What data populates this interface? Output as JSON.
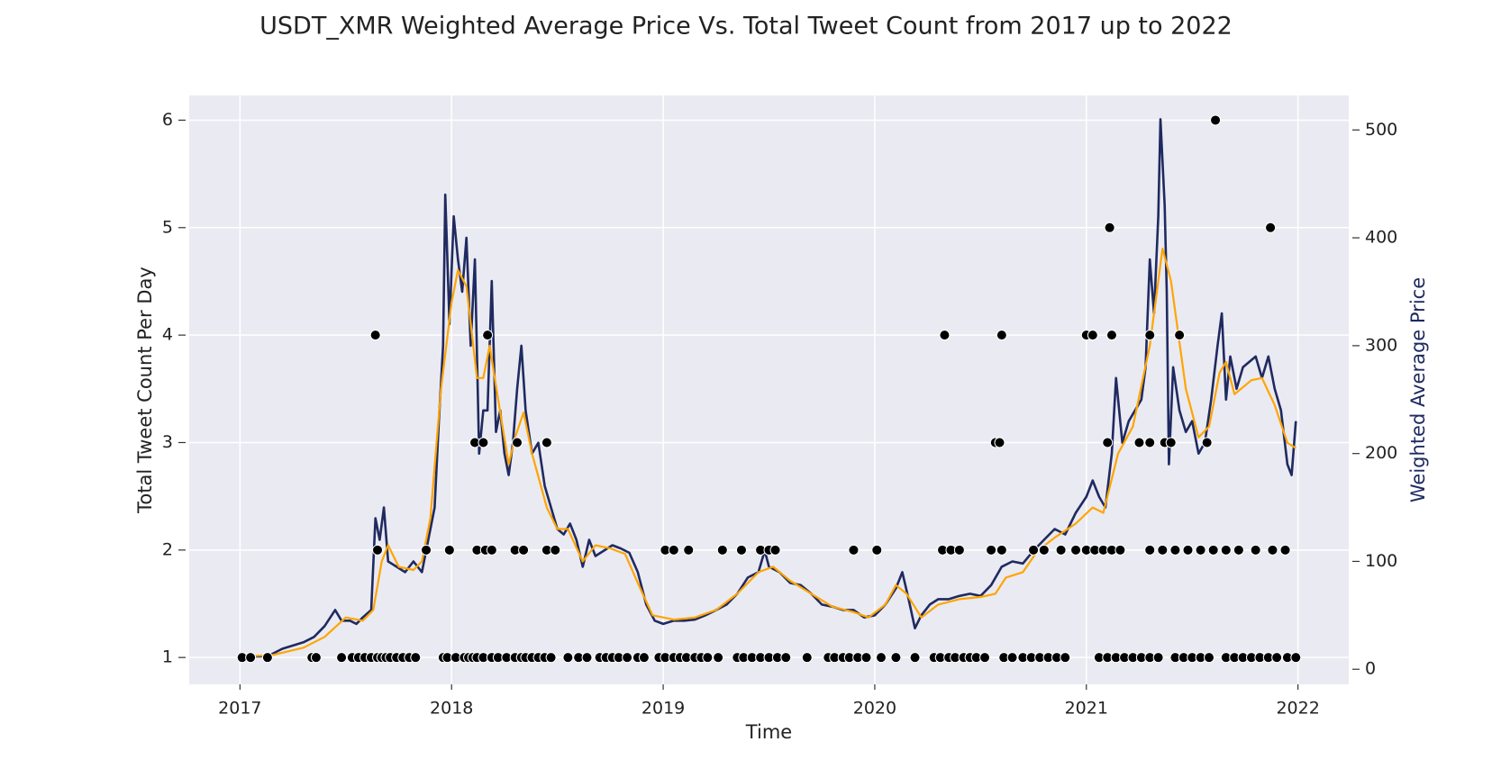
{
  "chart_data": {
    "type": "combo",
    "title": "USDT_XMR Weighted Average Price Vs. Total Tweet Count from 2017 up to 2022",
    "xlabel": "Time",
    "ylabel": "Total Tweet Count Per Day",
    "y2label": "Weighted Average Price",
    "y2label_color": "#1f2a60",
    "xlim": [
      2016.76,
      2022.24
    ],
    "xticks": [
      2017,
      2018,
      2019,
      2020,
      2021,
      2022
    ],
    "ylim": [
      0.75,
      6.23
    ],
    "yticks": [
      1,
      2,
      3,
      4,
      5,
      6
    ],
    "y2lim": [
      -14,
      532
    ],
    "y2ticks": [
      0,
      100,
      200,
      300,
      400,
      500
    ],
    "grid": true,
    "series": [
      {
        "type": "line",
        "axis": "y2",
        "color": "#1f2a60",
        "width": 2.6,
        "x": [
          2017.0,
          2017.05,
          2017.1,
          2017.15,
          2017.2,
          2017.25,
          2017.3,
          2017.35,
          2017.4,
          2017.45,
          2017.48,
          2017.52,
          2017.55,
          2017.58,
          2017.62,
          2017.64,
          2017.66,
          2017.68,
          2017.7,
          2017.74,
          2017.78,
          2017.82,
          2017.86,
          2017.88,
          2017.92,
          2017.94,
          2017.96,
          2017.97,
          2017.99,
          2018.01,
          2018.03,
          2018.05,
          2018.07,
          2018.09,
          2018.11,
          2018.13,
          2018.15,
          2018.17,
          2018.19,
          2018.21,
          2018.23,
          2018.25,
          2018.27,
          2018.29,
          2018.31,
          2018.33,
          2018.35,
          2018.38,
          2018.41,
          2018.44,
          2018.47,
          2018.5,
          2018.53,
          2018.56,
          2018.59,
          2018.62,
          2018.65,
          2018.68,
          2018.72,
          2018.76,
          2018.8,
          2018.84,
          2018.88,
          2018.92,
          2018.96,
          2019.0,
          2019.05,
          2019.1,
          2019.15,
          2019.2,
          2019.25,
          2019.3,
          2019.35,
          2019.4,
          2019.45,
          2019.48,
          2019.5,
          2019.55,
          2019.6,
          2019.65,
          2019.7,
          2019.75,
          2019.8,
          2019.85,
          2019.9,
          2019.95,
          2020.0,
          2020.05,
          2020.1,
          2020.13,
          2020.16,
          2020.19,
          2020.22,
          2020.26,
          2020.3,
          2020.35,
          2020.4,
          2020.45,
          2020.5,
          2020.55,
          2020.6,
          2020.65,
          2020.7,
          2020.75,
          2020.8,
          2020.85,
          2020.9,
          2020.95,
          2021.0,
          2021.03,
          2021.06,
          2021.09,
          2021.12,
          2021.14,
          2021.17,
          2021.2,
          2021.23,
          2021.26,
          2021.28,
          2021.3,
          2021.32,
          2021.34,
          2021.35,
          2021.37,
          2021.38,
          2021.39,
          2021.41,
          2021.44,
          2021.47,
          2021.5,
          2021.53,
          2021.56,
          2021.59,
          2021.62,
          2021.64,
          2021.66,
          2021.68,
          2021.71,
          2021.74,
          2021.77,
          2021.8,
          2021.83,
          2021.86,
          2021.89,
          2021.92,
          2021.95,
          2021.97,
          2021.99
        ],
        "values": [
          13,
          12,
          12,
          14,
          19,
          22,
          25,
          30,
          40,
          55,
          45,
          45,
          42,
          48,
          55,
          140,
          120,
          150,
          100,
          95,
          90,
          100,
          90,
          110,
          150,
          230,
          300,
          440,
          320,
          420,
          380,
          350,
          400,
          300,
          380,
          200,
          240,
          240,
          360,
          220,
          240,
          200,
          180,
          210,
          260,
          300,
          240,
          200,
          210,
          170,
          150,
          130,
          125,
          135,
          120,
          95,
          120,
          105,
          110,
          115,
          112,
          108,
          90,
          60,
          45,
          42,
          45,
          45,
          46,
          50,
          55,
          60,
          70,
          85,
          90,
          110,
          95,
          90,
          80,
          78,
          70,
          60,
          58,
          55,
          55,
          48,
          50,
          60,
          75,
          90,
          65,
          38,
          50,
          60,
          65,
          65,
          68,
          70,
          68,
          78,
          95,
          100,
          98,
          110,
          120,
          130,
          125,
          145,
          160,
          175,
          160,
          150,
          200,
          270,
          210,
          230,
          240,
          250,
          280,
          380,
          330,
          420,
          510,
          430,
          350,
          190,
          280,
          240,
          220,
          230,
          200,
          210,
          250,
          300,
          330,
          250,
          290,
          260,
          280,
          285,
          290,
          270,
          290,
          260,
          240,
          190,
          180,
          230
        ]
      },
      {
        "type": "line",
        "axis": "y2",
        "color": "#ffa500",
        "width": 2.2,
        "x": [
          2017.0,
          2017.15,
          2017.3,
          2017.4,
          2017.5,
          2017.58,
          2017.63,
          2017.67,
          2017.7,
          2017.75,
          2017.82,
          2017.86,
          2017.9,
          2017.95,
          2018.0,
          2018.03,
          2018.07,
          2018.12,
          2018.15,
          2018.18,
          2018.22,
          2018.27,
          2018.3,
          2018.34,
          2018.38,
          2018.45,
          2018.5,
          2018.55,
          2018.62,
          2018.68,
          2018.75,
          2018.82,
          2018.88,
          2018.95,
          2019.05,
          2019.15,
          2019.25,
          2019.35,
          2019.45,
          2019.52,
          2019.6,
          2019.7,
          2019.8,
          2019.9,
          2019.97,
          2020.05,
          2020.1,
          2020.15,
          2020.22,
          2020.3,
          2020.4,
          2020.5,
          2020.57,
          2020.62,
          2020.7,
          2020.77,
          2020.85,
          2020.95,
          2021.03,
          2021.08,
          2021.15,
          2021.22,
          2021.3,
          2021.36,
          2021.4,
          2021.47,
          2021.53,
          2021.58,
          2021.63,
          2021.66,
          2021.7,
          2021.78,
          2021.83,
          2021.89,
          2021.95,
          2021.99
        ],
        "values": [
          12,
          13,
          20,
          30,
          48,
          45,
          55,
          100,
          115,
          95,
          92,
          100,
          140,
          260,
          340,
          370,
          355,
          270,
          270,
          300,
          250,
          190,
          215,
          238,
          200,
          150,
          130,
          130,
          100,
          115,
          112,
          107,
          80,
          50,
          46,
          48,
          55,
          70,
          90,
          95,
          82,
          70,
          58,
          53,
          48,
          60,
          78,
          70,
          48,
          60,
          65,
          67,
          70,
          85,
          90,
          110,
          122,
          135,
          150,
          145,
          200,
          225,
          300,
          390,
          360,
          260,
          215,
          225,
          275,
          285,
          255,
          268,
          270,
          245,
          210,
          205
        ]
      },
      {
        "type": "scatter",
        "axis": "y",
        "color": "#000000",
        "x": [
          2017.01,
          2017.05,
          2017.13,
          2017.34,
          2017.36,
          2017.48,
          2017.53,
          2017.56,
          2017.59,
          2017.62,
          2017.65,
          2017.67,
          2017.69,
          2017.71,
          2017.74,
          2017.77,
          2017.8,
          2017.83,
          2017.96,
          2017.98,
          2018.02,
          2018.06,
          2018.08,
          2018.1,
          2018.12,
          2018.15,
          2018.19,
          2018.22,
          2018.26,
          2018.3,
          2018.33,
          2018.35,
          2018.38,
          2018.41,
          2018.44,
          2018.47,
          2018.55,
          2018.6,
          2018.64,
          2018.7,
          2018.73,
          2018.76,
          2018.79,
          2018.83,
          2018.88,
          2018.91,
          2018.98,
          2019.01,
          2019.05,
          2019.08,
          2019.11,
          2019.15,
          2019.18,
          2019.21,
          2019.26,
          2019.35,
          2019.38,
          2019.42,
          2019.46,
          2019.5,
          2019.54,
          2019.58,
          2019.68,
          2019.78,
          2019.81,
          2019.85,
          2019.88,
          2019.92,
          2019.96,
          2020.03,
          2020.1,
          2020.19,
          2020.28,
          2020.31,
          2020.35,
          2020.38,
          2020.42,
          2020.45,
          2020.48,
          2020.52,
          2020.61,
          2020.65,
          2020.7,
          2020.74,
          2020.78,
          2020.82,
          2020.86,
          2020.9,
          2021.06,
          2021.1,
          2021.14,
          2021.18,
          2021.22,
          2021.26,
          2021.3,
          2021.34,
          2021.42,
          2021.46,
          2021.5,
          2021.54,
          2021.58,
          2021.66,
          2021.7,
          2021.74,
          2021.78,
          2021.82,
          2021.86,
          2021.9,
          2021.95,
          2021.99,
          2017.65,
          2017.88,
          2017.99,
          2018.12,
          2018.16,
          2018.19,
          2018.3,
          2018.34,
          2018.45,
          2018.49,
          2019.01,
          2019.05,
          2019.12,
          2019.28,
          2019.37,
          2019.46,
          2019.5,
          2019.53,
          2019.9,
          2020.01,
          2020.32,
          2020.36,
          2020.4,
          2020.55,
          2020.6,
          2020.75,
          2020.8,
          2020.88,
          2020.95,
          2021.0,
          2021.04,
          2021.08,
          2021.12,
          2021.16,
          2021.3,
          2021.36,
          2021.42,
          2021.48,
          2021.54,
          2021.6,
          2021.66,
          2021.72,
          2021.8,
          2021.88,
          2021.94,
          2018.11,
          2018.15,
          2018.31,
          2018.45,
          2020.57,
          2020.59,
          2021.1,
          2021.25,
          2021.3,
          2021.37,
          2021.4,
          2021.57,
          2017.64,
          2018.17,
          2020.33,
          2020.6,
          2021.0,
          2021.03,
          2021.12,
          2021.3,
          2021.44,
          2021.11,
          2021.87,
          2021.61
        ],
        "values": [
          1,
          1,
          1,
          1,
          1,
          1,
          1,
          1,
          1,
          1,
          1,
          1,
          1,
          1,
          1,
          1,
          1,
          1,
          1,
          1,
          1,
          1,
          1,
          1,
          1,
          1,
          1,
          1,
          1,
          1,
          1,
          1,
          1,
          1,
          1,
          1,
          1,
          1,
          1,
          1,
          1,
          1,
          1,
          1,
          1,
          1,
          1,
          1,
          1,
          1,
          1,
          1,
          1,
          1,
          1,
          1,
          1,
          1,
          1,
          1,
          1,
          1,
          1,
          1,
          1,
          1,
          1,
          1,
          1,
          1,
          1,
          1,
          1,
          1,
          1,
          1,
          1,
          1,
          1,
          1,
          1,
          1,
          1,
          1,
          1,
          1,
          1,
          1,
          1,
          1,
          1,
          1,
          1,
          1,
          1,
          1,
          1,
          1,
          1,
          1,
          1,
          1,
          1,
          1,
          1,
          1,
          1,
          1,
          1,
          1,
          2,
          2,
          2,
          2,
          2,
          2,
          2,
          2,
          2,
          2,
          2,
          2,
          2,
          2,
          2,
          2,
          2,
          2,
          2,
          2,
          2,
          2,
          2,
          2,
          2,
          2,
          2,
          2,
          2,
          2,
          2,
          2,
          2,
          2,
          2,
          2,
          2,
          2,
          2,
          2,
          2,
          2,
          2,
          2,
          2,
          3,
          3,
          3,
          3,
          3,
          3,
          3,
          3,
          3,
          3,
          3,
          3,
          4,
          4,
          4,
          4,
          4,
          4,
          4,
          4,
          4,
          5,
          5,
          6
        ]
      }
    ]
  }
}
